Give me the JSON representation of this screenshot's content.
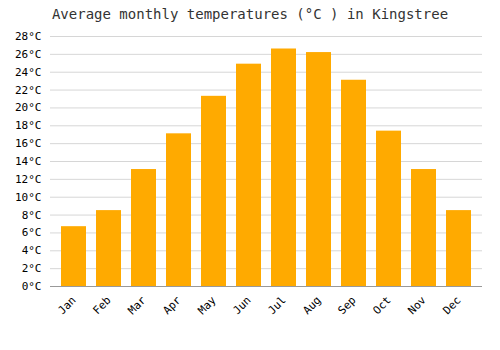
{
  "chart_data": {
    "type": "bar",
    "title": "Average monthly temperatures (°C ) in Kingstree",
    "categories": [
      "Jan",
      "Feb",
      "Mar",
      "Apr",
      "May",
      "Jun",
      "Jul",
      "Aug",
      "Sep",
      "Oct",
      "Nov",
      "Dec"
    ],
    "values": [
      6.7,
      8.5,
      13.1,
      17.1,
      21.3,
      24.9,
      26.6,
      26.2,
      23.1,
      17.4,
      13.1,
      8.5
    ],
    "color": "#FFAA00",
    "ylim": [
      0,
      28
    ],
    "yticks": [
      {
        "value": 0,
        "label": "0°C"
      },
      {
        "value": 2,
        "label": "2°C"
      },
      {
        "value": 4,
        "label": "4°C"
      },
      {
        "value": 6,
        "label": "6°C"
      },
      {
        "value": 8,
        "label": "8°C"
      },
      {
        "value": 10,
        "label": "10°C"
      },
      {
        "value": 12,
        "label": "12°C"
      },
      {
        "value": 14,
        "label": "14°C"
      },
      {
        "value": 16,
        "label": "16°C"
      },
      {
        "value": 18,
        "label": "18°C"
      },
      {
        "value": 20,
        "label": "20°C"
      },
      {
        "value": 22,
        "label": "22°C"
      },
      {
        "value": 24,
        "label": "24°C"
      },
      {
        "value": 26,
        "label": "26°C"
      },
      {
        "value": 28,
        "label": "28°C"
      }
    ],
    "grid": true
  }
}
